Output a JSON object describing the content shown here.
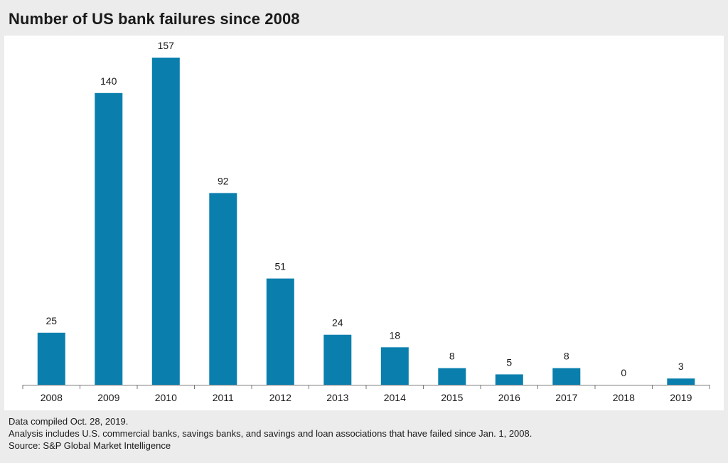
{
  "title": "Number of US bank failures since 2008",
  "colors": {
    "bar": "#0a7fae",
    "background": "#ececec",
    "panel": "#ffffff",
    "axis": "#7a7a7a"
  },
  "chart_data": {
    "type": "bar",
    "title": "Number of US bank failures since 2008",
    "categories": [
      "2008",
      "2009",
      "2010",
      "2011",
      "2012",
      "2013",
      "2014",
      "2015",
      "2016",
      "2017",
      "2018",
      "2019"
    ],
    "values": [
      25,
      140,
      157,
      92,
      51,
      24,
      18,
      8,
      5,
      8,
      0,
      3
    ],
    "xlabel": "",
    "ylabel": "",
    "ylim": [
      0,
      157
    ],
    "grid": false,
    "data_labels": true
  },
  "footnotes": {
    "line1": "Data compiled Oct. 28, 2019.",
    "line2": "Analysis includes U.S. commercial banks, savings banks, and savings and loan associations that have failed since Jan. 1, 2008.",
    "line3": "Source: S&P Global Market Intelligence"
  }
}
